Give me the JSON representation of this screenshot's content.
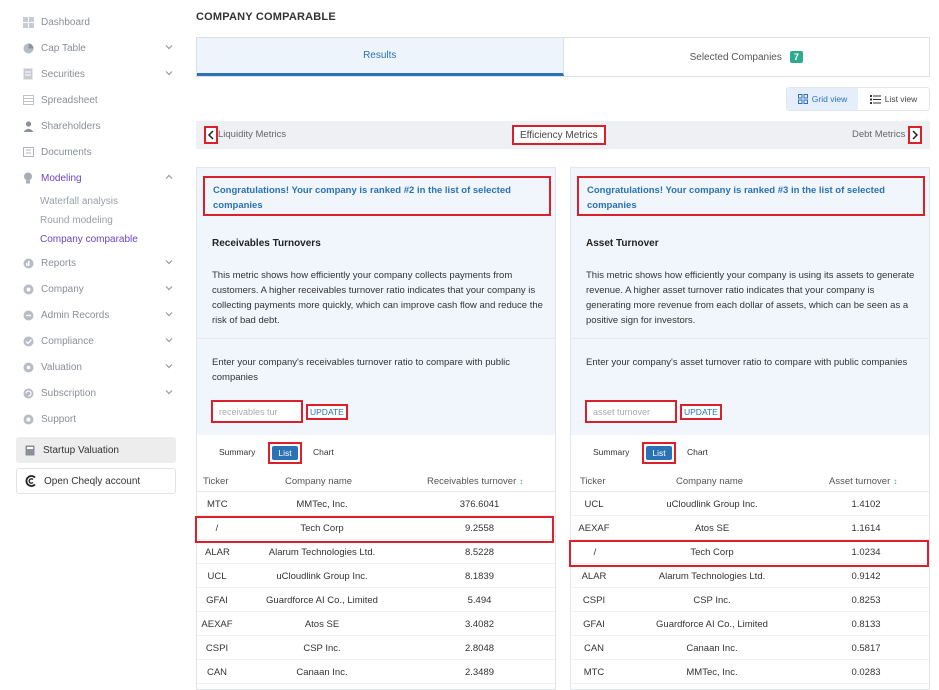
{
  "sidebar": {
    "items": [
      {
        "label": "Dashboard",
        "icon": "dashboard-icon",
        "chevron": false
      },
      {
        "label": "Cap Table",
        "icon": "pie-chart-icon",
        "chevron": true
      },
      {
        "label": "Securities",
        "icon": "document-icon",
        "chevron": true
      },
      {
        "label": "Spreadsheet",
        "icon": "grid-icon",
        "chevron": false
      },
      {
        "label": "Shareholders",
        "icon": "person-icon",
        "chevron": false
      },
      {
        "label": "Documents",
        "icon": "folder-icon",
        "chevron": false
      },
      {
        "label": "Modeling",
        "icon": "bulb-icon",
        "chevron": true
      },
      {
        "label": "Reports",
        "icon": "chart-icon",
        "chevron": true
      },
      {
        "label": "Company",
        "icon": "building-icon",
        "chevron": true
      },
      {
        "label": "Admin Records",
        "icon": "records-icon",
        "chevron": true
      },
      {
        "label": "Compliance",
        "icon": "shield-icon",
        "chevron": true
      },
      {
        "label": "Valuation",
        "icon": "gear-icon",
        "chevron": true
      },
      {
        "label": "Subscription",
        "icon": "refresh-icon",
        "chevron": true
      },
      {
        "label": "Support",
        "icon": "support-icon",
        "chevron": false
      }
    ],
    "modeling_sub": [
      "Waterfall analysis",
      "Round modeling",
      "Company comparable"
    ],
    "startup_valuation": "Startup Valuation",
    "open_account": "Open Cheqly account"
  },
  "page": {
    "title": "COMPANY COMPARABLE",
    "tabs": {
      "results": "Results",
      "selected": "Selected Companies",
      "selected_count": "7"
    },
    "view": {
      "grid": "Grid view",
      "list": "List view"
    },
    "metrics": {
      "prev": "Liquidity Metrics",
      "current": "Efficiency Metrics",
      "next": "Debt Metrics"
    }
  },
  "cards": [
    {
      "congrats": "Congratulations! Your company is ranked #2 in the list of selected companies",
      "metric_title": "Receivables Turnovers",
      "description": "This metric shows how efficiently your company collects payments from customers. A higher receivables turnover ratio indicates that your company is collecting payments more quickly, which can improve cash flow and reduce the risk of bad debt.",
      "enter_text": "Enter your company's receivables turnover ratio to compare with public companies",
      "input_placeholder": "receivables tur",
      "update": "UPDATE",
      "subtabs": {
        "summary": "Summary",
        "list": "List",
        "chart": "Chart"
      },
      "headers": {
        "ticker": "Ticker",
        "company": "Company name",
        "value": "Receivables turnover"
      },
      "rows": [
        {
          "ticker": "MTC",
          "company": "MMTec, Inc.",
          "value": "376.6041"
        },
        {
          "ticker": "/",
          "company": "Tech Corp",
          "value": "9.2558"
        },
        {
          "ticker": "ALAR",
          "company": "Alarum Technologies Ltd.",
          "value": "8.5228"
        },
        {
          "ticker": "UCL",
          "company": "uCloudlink Group Inc.",
          "value": "8.1839"
        },
        {
          "ticker": "GFAI",
          "company": "Guardforce AI Co., Limited",
          "value": "5.494"
        },
        {
          "ticker": "AEXAF",
          "company": "Atos SE",
          "value": "3.4082"
        },
        {
          "ticker": "CSPI",
          "company": "CSP Inc.",
          "value": "2.8048"
        },
        {
          "ticker": "CAN",
          "company": "Canaan Inc.",
          "value": "2.3489"
        }
      ]
    },
    {
      "congrats": "Congratulations! Your company is ranked #3 in the list of selected companies",
      "metric_title": "Asset Turnover",
      "description": "This metric shows how efficiently your company is using its assets to generate revenue. A higher asset turnover ratio indicates that your company is generating more revenue from each dollar of assets, which can be seen as a positive sign for investors.",
      "enter_text": "Enter your company's asset turnover ratio to compare with public companies",
      "input_placeholder": "asset turnover",
      "update": "UPDATE",
      "subtabs": {
        "summary": "Summary",
        "list": "List",
        "chart": "Chart"
      },
      "headers": {
        "ticker": "Ticker",
        "company": "Company name",
        "value": "Asset turnover"
      },
      "rows": [
        {
          "ticker": "UCL",
          "company": "uCloudlink Group Inc.",
          "value": "1.4102"
        },
        {
          "ticker": "AEXAF",
          "company": "Atos SE",
          "value": "1.1614"
        },
        {
          "ticker": "/",
          "company": "Tech Corp",
          "value": "1.0234"
        },
        {
          "ticker": "ALAR",
          "company": "Alarum Technologies Ltd.",
          "value": "0.9142"
        },
        {
          "ticker": "CSPI",
          "company": "CSP Inc.",
          "value": "0.8253"
        },
        {
          "ticker": "GFAI",
          "company": "Guardforce AI Co., Limited",
          "value": "0.8133"
        },
        {
          "ticker": "CAN",
          "company": "Canaan Inc.",
          "value": "0.5817"
        },
        {
          "ticker": "MTC",
          "company": "MMTec, Inc.",
          "value": "0.0283"
        }
      ]
    }
  ],
  "colors": {
    "accent": "#2a72b5",
    "highlight": "#d9202b",
    "badge": "#2faa8e",
    "active_nav": "#6a45c9"
  }
}
